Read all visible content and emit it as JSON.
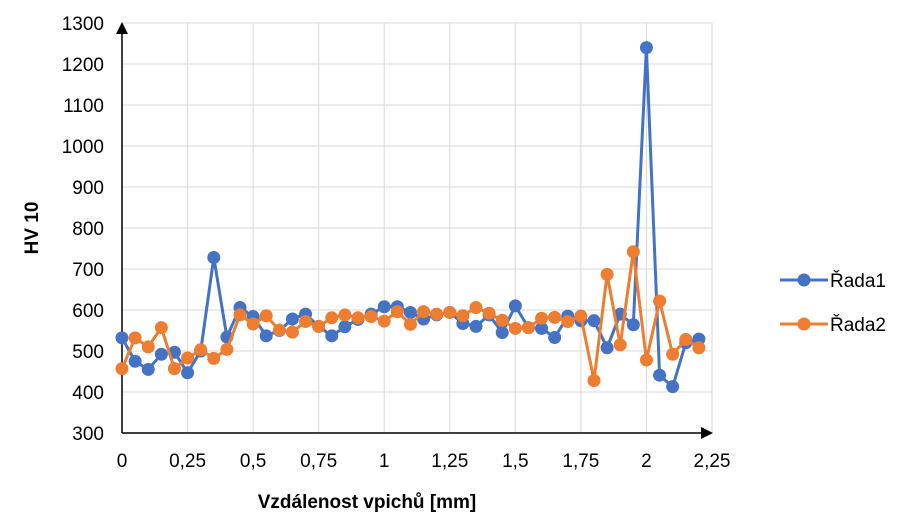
{
  "chart_data": {
    "type": "line",
    "title": "",
    "xlabel": "Vzdálenost vpichů [mm]",
    "ylabel": "HV 10",
    "xlim": [
      0,
      2.25
    ],
    "ylim": [
      300,
      1300
    ],
    "x_ticks": [
      "0",
      "0,25",
      "0,5",
      "0,75",
      "1",
      "1,25",
      "1,5",
      "1,75",
      "2",
      "2,25"
    ],
    "y_ticks": [
      "300",
      "400",
      "500",
      "600",
      "700",
      "800",
      "900",
      "1000",
      "1100",
      "1200",
      "1300"
    ],
    "grid": true,
    "legend_position": "right",
    "x": [
      0,
      0.05,
      0.1,
      0.15,
      0.2,
      0.25,
      0.3,
      0.35,
      0.4,
      0.45,
      0.5,
      0.55,
      0.6,
      0.65,
      0.7,
      0.75,
      0.8,
      0.85,
      0.9,
      0.95,
      1,
      1.05,
      1.1,
      1.15,
      1.2,
      1.25,
      1.3,
      1.35,
      1.4,
      1.45,
      1.5,
      1.55,
      1.6,
      1.65,
      1.7,
      1.75,
      1.8,
      1.85,
      1.9,
      1.95,
      2,
      2.05,
      2.1,
      2.15,
      2.2
    ],
    "series": [
      {
        "name": "Řada1",
        "color": "#4472C4",
        "values": [
          532,
          475,
          455,
          492,
          497,
          447,
          500,
          728,
          534,
          606,
          584,
          537,
          550,
          578,
          590,
          560,
          537,
          559,
          577,
          590,
          608,
          608,
          594,
          578,
          588,
          594,
          567,
          560,
          588,
          545,
          610,
          557,
          555,
          533,
          585,
          574,
          574,
          508,
          590,
          564,
          1240,
          441,
          413,
          520,
          529
        ]
      },
      {
        "name": "Řada2",
        "color": "#ED7D31",
        "values": [
          457,
          532,
          510,
          557,
          457,
          483,
          503,
          482,
          504,
          588,
          566,
          586,
          551,
          546,
          572,
          560,
          581,
          588,
          581,
          584,
          573,
          596,
          565,
          596,
          590,
          594,
          586,
          606,
          592,
          575,
          555,
          557,
          580,
          582,
          572,
          585,
          428,
          687,
          515,
          742,
          478,
          622,
          492,
          528,
          508
        ]
      }
    ]
  }
}
